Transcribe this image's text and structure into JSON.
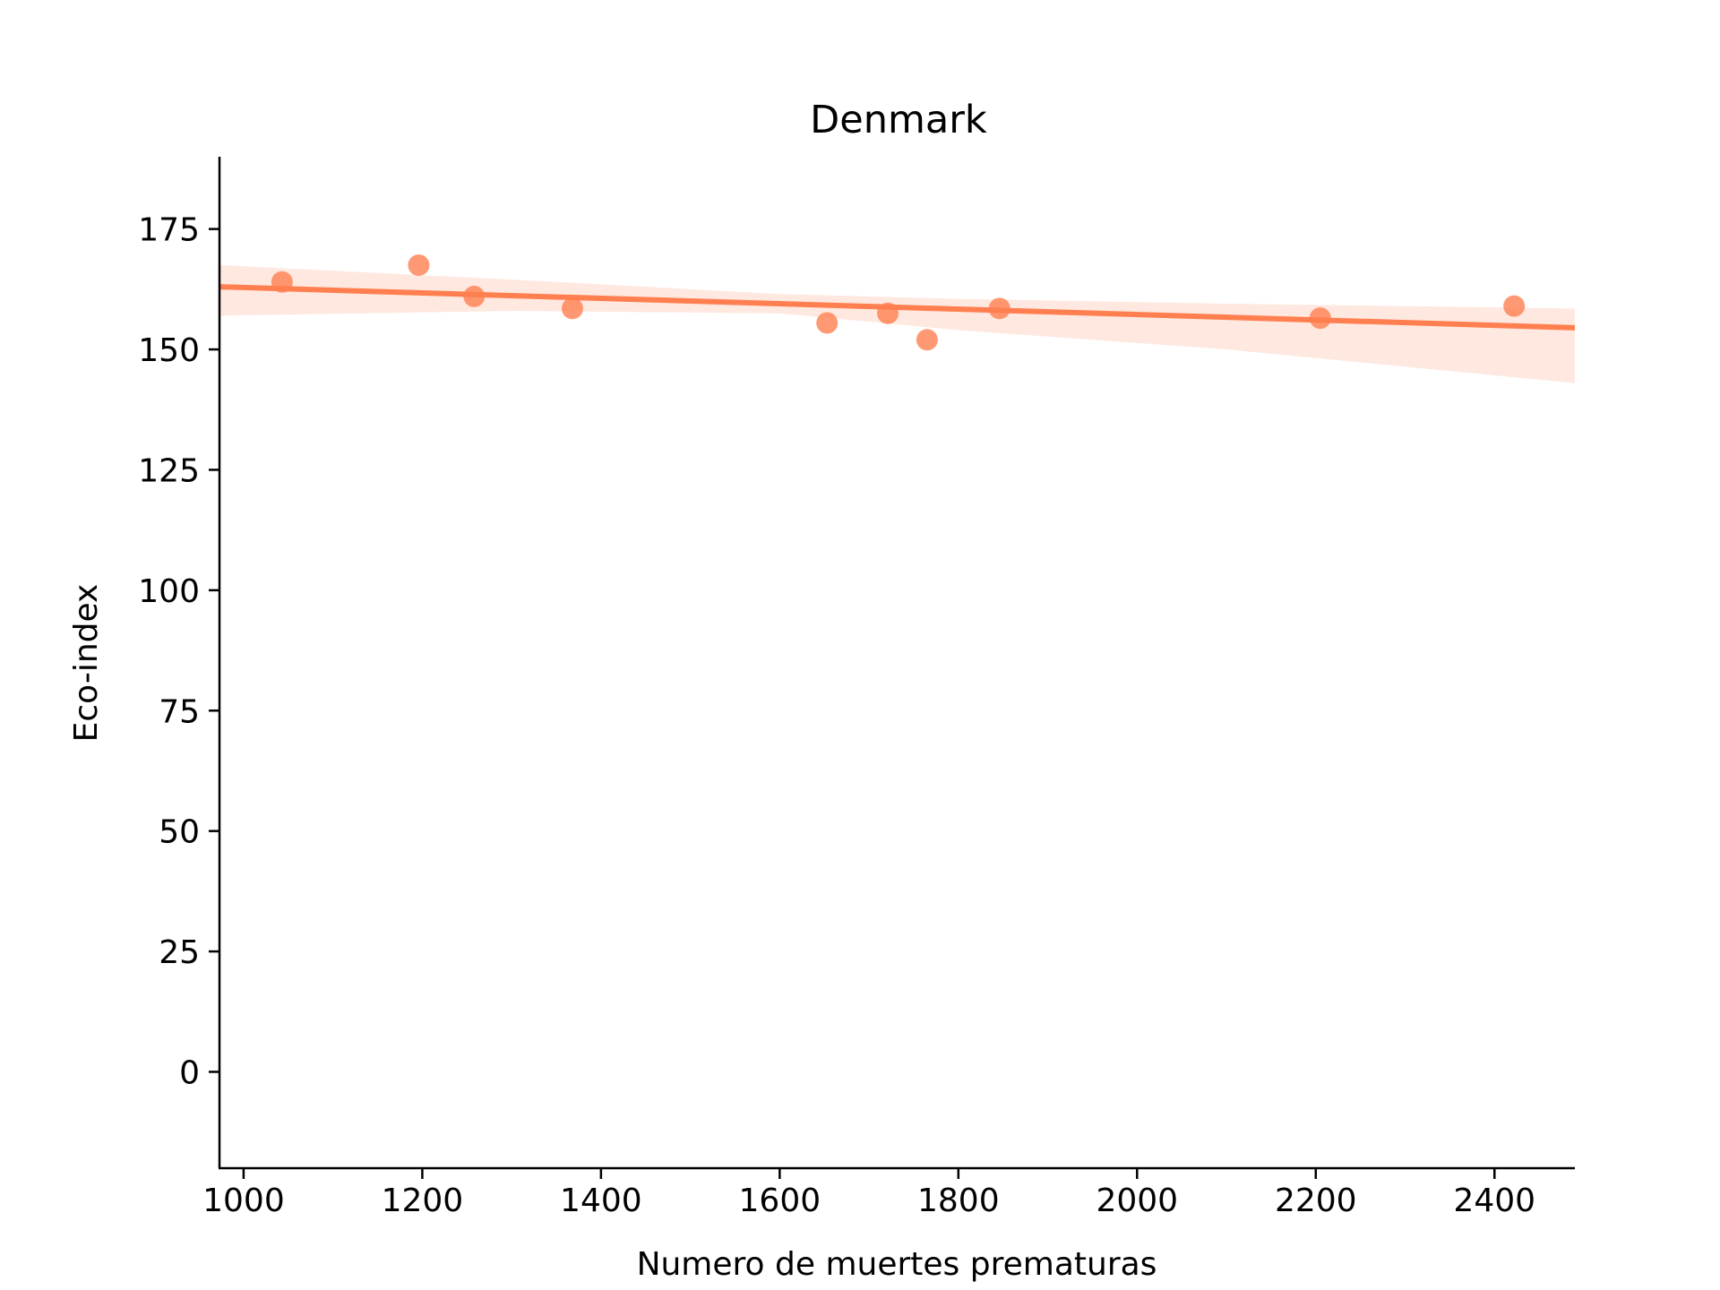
{
  "chart_data": {
    "type": "scatter",
    "title": "Denmark",
    "xlabel": "Numero de muertes prematuras",
    "ylabel": "Eco-index",
    "xlim": [
      973,
      2490
    ],
    "ylim": [
      -20,
      190
    ],
    "x_ticks": [
      1000,
      1200,
      1400,
      1600,
      1800,
      2000,
      2200,
      2400
    ],
    "y_ticks": [
      0,
      25,
      50,
      75,
      100,
      125,
      150,
      175
    ],
    "grid": false,
    "color": "#ff7f50",
    "band_color": "#ffe4da",
    "series": [
      {
        "points": [
          {
            "x": 1043,
            "y": 164
          },
          {
            "x": 1196,
            "y": 167.5
          },
          {
            "x": 1258,
            "y": 161
          },
          {
            "x": 1368,
            "y": 158.5
          },
          {
            "x": 1653,
            "y": 155.5
          },
          {
            "x": 1721,
            "y": 157.5
          },
          {
            "x": 1765,
            "y": 152
          },
          {
            "x": 1846,
            "y": 158.5
          },
          {
            "x": 2205,
            "y": 156.5
          },
          {
            "x": 2422,
            "y": 159
          }
        ]
      }
    ],
    "regression": {
      "x_start": 973,
      "y_start": 163,
      "x_end": 2490,
      "y_end": 154.5,
      "ci_upper": [
        [
          973,
          167.5
        ],
        [
          1300,
          164.5
        ],
        [
          1600,
          161.5
        ],
        [
          1800,
          160.5
        ],
        [
          2100,
          159.5
        ],
        [
          2490,
          158.5
        ]
      ],
      "ci_lower": [
        [
          973,
          157
        ],
        [
          1300,
          158
        ],
        [
          1600,
          157.5
        ],
        [
          1800,
          154
        ],
        [
          2100,
          150
        ],
        [
          2490,
          143
        ]
      ]
    }
  }
}
